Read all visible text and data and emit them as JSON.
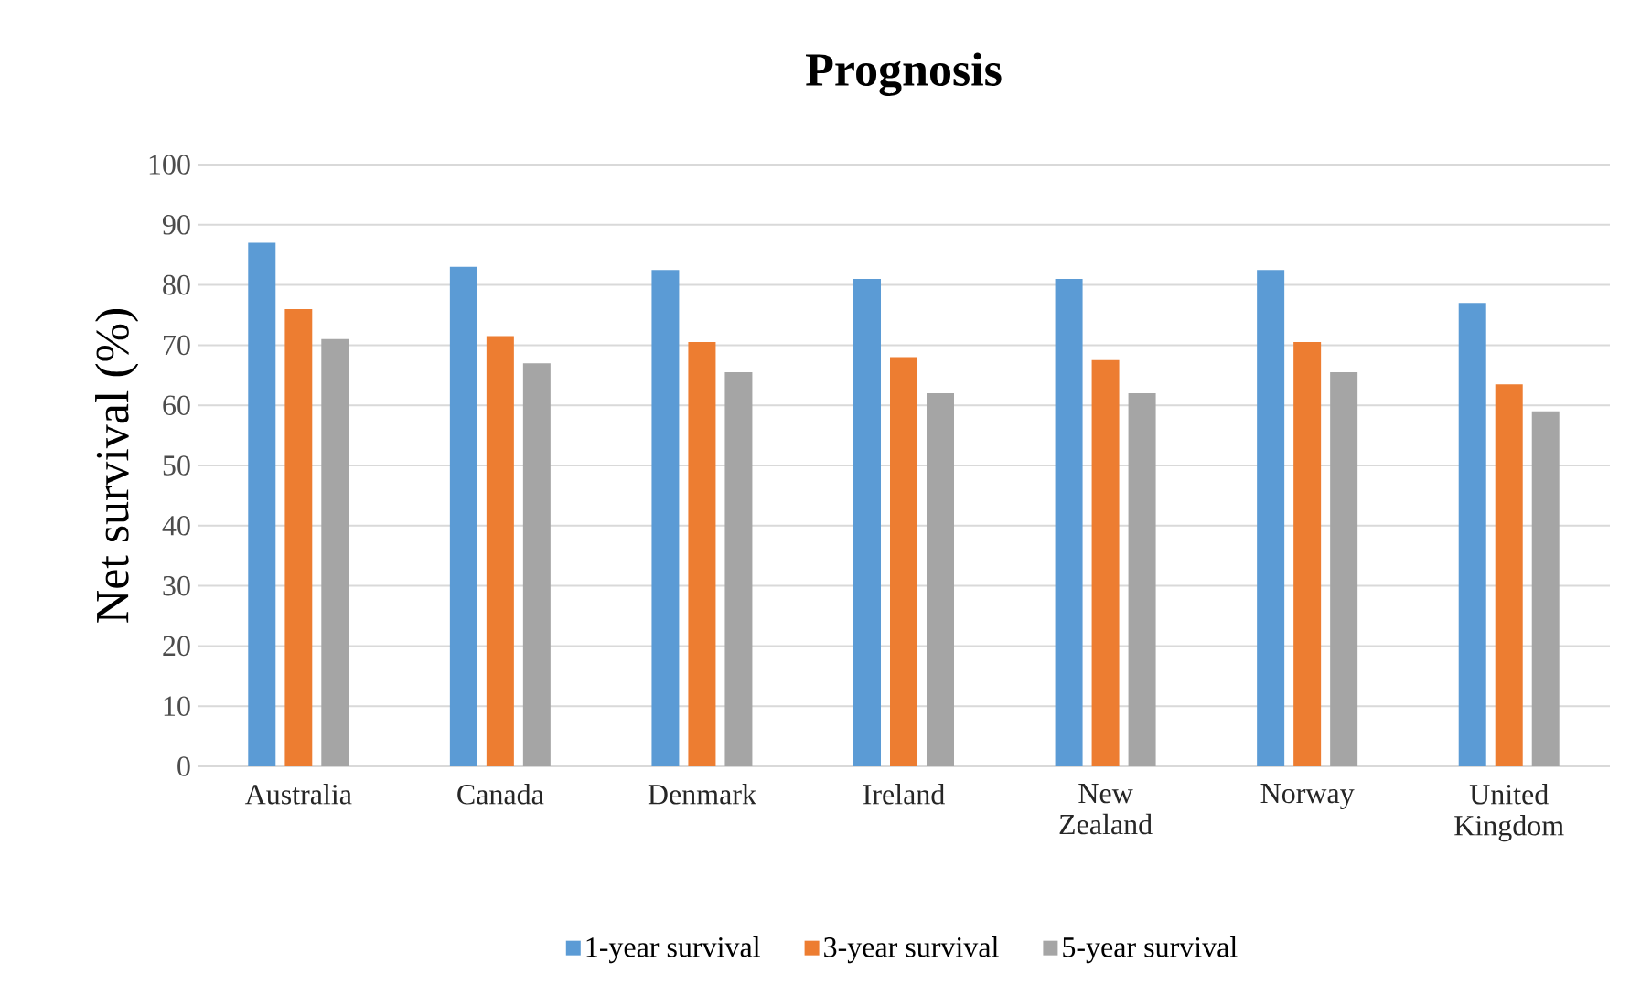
{
  "chart_data": {
    "type": "bar",
    "title": "Prognosis",
    "ylabel": "Net survival (%)",
    "categories": [
      "Australia",
      "Canada",
      "Denmark",
      "Ireland",
      "New Zealand",
      "Norway",
      "United Kingdom"
    ],
    "series": [
      {
        "name": "1-year survival",
        "color": "#5b9bd5",
        "values": [
          87,
          83,
          82.5,
          81,
          81,
          82.5,
          77
        ]
      },
      {
        "name": "3-year survival",
        "color": "#ed7d31",
        "values": [
          76,
          71.5,
          70.5,
          68,
          67.5,
          70.5,
          63.5
        ]
      },
      {
        "name": "5-year survival",
        "color": "#a5a5a5",
        "values": [
          71,
          67,
          65.5,
          62,
          62,
          65.5,
          59
        ]
      }
    ],
    "ylim": [
      0,
      100
    ],
    "yticks": [
      0,
      10,
      20,
      30,
      40,
      50,
      60,
      70,
      80,
      90,
      100
    ],
    "grid": "y",
    "legend": "bottom"
  }
}
